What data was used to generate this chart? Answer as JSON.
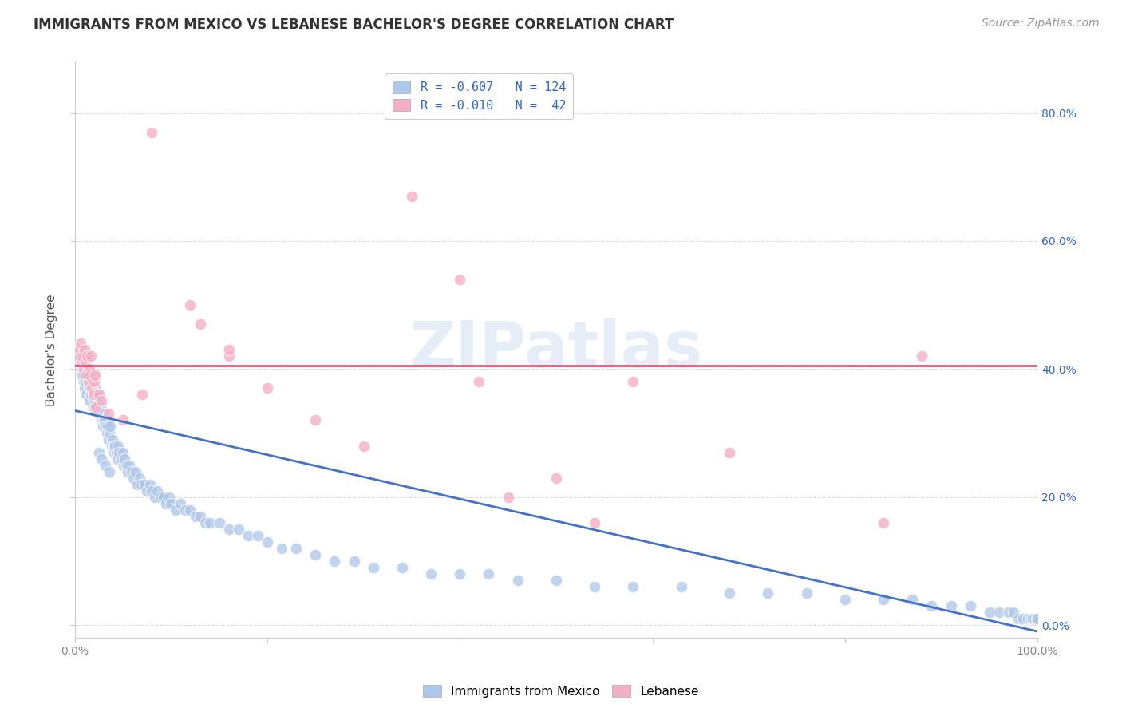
{
  "title": "IMMIGRANTS FROM MEXICO VS LEBANESE BACHELOR'S DEGREE CORRELATION CHART",
  "source": "Source: ZipAtlas.com",
  "ylabel": "Bachelor's Degree",
  "ytick_labels": [
    "0.0%",
    "20.0%",
    "40.0%",
    "60.0%",
    "80.0%"
  ],
  "ytick_values": [
    0.0,
    0.2,
    0.4,
    0.6,
    0.8
  ],
  "xlim": [
    0.0,
    1.0
  ],
  "ylim": [
    -0.02,
    0.88
  ],
  "watermark": "ZIPatlas",
  "blue_color": "#aec6e8",
  "pink_color": "#f4afc4",
  "blue_line_color": "#4472c4",
  "pink_line_color": "#d04060",
  "grid_color": "#dddddd",
  "background_color": "#ffffff",
  "blue_scatter_x": [
    0.005,
    0.007,
    0.008,
    0.009,
    0.01,
    0.01,
    0.011,
    0.012,
    0.013,
    0.014,
    0.015,
    0.015,
    0.016,
    0.017,
    0.018,
    0.019,
    0.02,
    0.02,
    0.021,
    0.022,
    0.023,
    0.024,
    0.025,
    0.025,
    0.026,
    0.027,
    0.028,
    0.029,
    0.03,
    0.03,
    0.031,
    0.032,
    0.033,
    0.034,
    0.035,
    0.036,
    0.037,
    0.038,
    0.039,
    0.04,
    0.041,
    0.042,
    0.043,
    0.044,
    0.045,
    0.046,
    0.048,
    0.05,
    0.051,
    0.052,
    0.054,
    0.055,
    0.057,
    0.059,
    0.061,
    0.063,
    0.065,
    0.067,
    0.069,
    0.072,
    0.075,
    0.078,
    0.08,
    0.083,
    0.086,
    0.089,
    0.092,
    0.095,
    0.098,
    0.1,
    0.105,
    0.11,
    0.115,
    0.12,
    0.125,
    0.13,
    0.135,
    0.14,
    0.15,
    0.16,
    0.17,
    0.18,
    0.19,
    0.2,
    0.215,
    0.23,
    0.25,
    0.27,
    0.29,
    0.31,
    0.34,
    0.37,
    0.4,
    0.43,
    0.46,
    0.5,
    0.54,
    0.58,
    0.63,
    0.68,
    0.72,
    0.76,
    0.8,
    0.84,
    0.87,
    0.89,
    0.91,
    0.93,
    0.95,
    0.96,
    0.97,
    0.975,
    0.98,
    0.985,
    0.99,
    0.993,
    0.995,
    0.997,
    0.999,
    1.0,
    0.025,
    0.028,
    0.032,
    0.036
  ],
  "blue_scatter_y": [
    0.41,
    0.4,
    0.39,
    0.38,
    0.41,
    0.37,
    0.38,
    0.36,
    0.39,
    0.38,
    0.37,
    0.35,
    0.37,
    0.36,
    0.38,
    0.34,
    0.39,
    0.36,
    0.35,
    0.37,
    0.36,
    0.34,
    0.35,
    0.33,
    0.36,
    0.34,
    0.32,
    0.31,
    0.33,
    0.32,
    0.32,
    0.31,
    0.3,
    0.31,
    0.29,
    0.3,
    0.31,
    0.28,
    0.29,
    0.28,
    0.27,
    0.28,
    0.27,
    0.26,
    0.28,
    0.27,
    0.26,
    0.27,
    0.25,
    0.26,
    0.25,
    0.24,
    0.25,
    0.24,
    0.23,
    0.24,
    0.22,
    0.23,
    0.22,
    0.22,
    0.21,
    0.22,
    0.21,
    0.2,
    0.21,
    0.2,
    0.2,
    0.19,
    0.2,
    0.19,
    0.18,
    0.19,
    0.18,
    0.18,
    0.17,
    0.17,
    0.16,
    0.16,
    0.16,
    0.15,
    0.15,
    0.14,
    0.14,
    0.13,
    0.12,
    0.12,
    0.11,
    0.1,
    0.1,
    0.09,
    0.09,
    0.08,
    0.08,
    0.08,
    0.07,
    0.07,
    0.06,
    0.06,
    0.06,
    0.05,
    0.05,
    0.05,
    0.04,
    0.04,
    0.04,
    0.03,
    0.03,
    0.03,
    0.02,
    0.02,
    0.02,
    0.02,
    0.01,
    0.01,
    0.01,
    0.01,
    0.01,
    0.01,
    0.01,
    0.01,
    0.27,
    0.26,
    0.25,
    0.24
  ],
  "pink_scatter_x": [
    0.003,
    0.005,
    0.006,
    0.007,
    0.008,
    0.009,
    0.01,
    0.011,
    0.012,
    0.013,
    0.014,
    0.015,
    0.016,
    0.017,
    0.018,
    0.019,
    0.02,
    0.021,
    0.022,
    0.025,
    0.028,
    0.035,
    0.05,
    0.07,
    0.08,
    0.12,
    0.16,
    0.2,
    0.25,
    0.3,
    0.35,
    0.4,
    0.42,
    0.45,
    0.5,
    0.54,
    0.58,
    0.68,
    0.84,
    0.88,
    0.13,
    0.16
  ],
  "pink_scatter_y": [
    0.42,
    0.43,
    0.44,
    0.41,
    0.42,
    0.4,
    0.43,
    0.41,
    0.39,
    0.42,
    0.38,
    0.4,
    0.39,
    0.42,
    0.37,
    0.36,
    0.38,
    0.39,
    0.34,
    0.36,
    0.35,
    0.33,
    0.32,
    0.36,
    0.77,
    0.5,
    0.42,
    0.37,
    0.32,
    0.28,
    0.67,
    0.54,
    0.38,
    0.2,
    0.23,
    0.16,
    0.38,
    0.27,
    0.16,
    0.42,
    0.47,
    0.43
  ],
  "blue_line_x0": 0.0,
  "blue_line_y0": 0.335,
  "blue_line_x1": 1.0,
  "blue_line_y1": -0.01,
  "pink_line_y": 0.405,
  "title_fontsize": 12,
  "axis_label_fontsize": 11,
  "tick_fontsize": 10,
  "legend_fontsize": 11,
  "source_fontsize": 10,
  "legend1_label1": "R = -0.607   N = 124",
  "legend1_label2": "R = -0.010   N =  42",
  "legend2_label1": "Immigrants from Mexico",
  "legend2_label2": "Lebanese"
}
